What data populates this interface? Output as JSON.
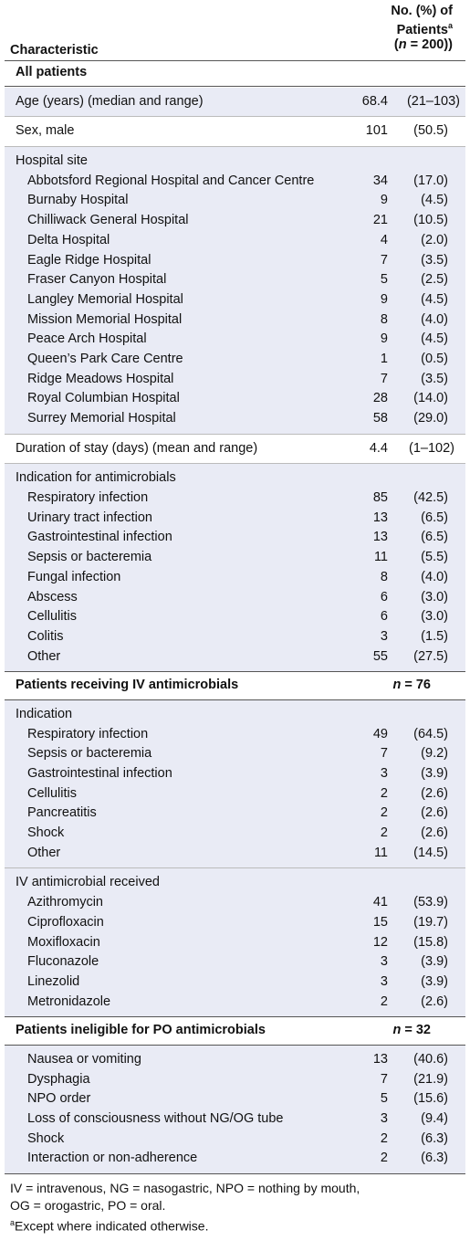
{
  "header": {
    "characteristic": "Characteristic",
    "col_line1": "No. (%) of",
    "col_line2": "Patients",
    "col_sup": "a",
    "col_line3_prefix": "(",
    "col_line3_n": "n",
    "col_line3_rest": " = 200)"
  },
  "all_patients": {
    "title": "All patients",
    "age": {
      "label": "Age (years) (median and range)",
      "n": "68.4",
      "p": "(21–103)"
    },
    "sex": {
      "label": "Sex, male",
      "n": "101",
      "p": "(50.5)"
    },
    "hospital_title": "Hospital site",
    "hospitals": [
      {
        "label": "Abbotsford Regional Hospital and Cancer Centre",
        "n": "34",
        "p": "(17.0)"
      },
      {
        "label": "Burnaby Hospital",
        "n": "9",
        "p": "(4.5)"
      },
      {
        "label": "Chilliwack General Hospital",
        "n": "21",
        "p": "(10.5)"
      },
      {
        "label": "Delta Hospital",
        "n": "4",
        "p": "(2.0)"
      },
      {
        "label": "Eagle Ridge Hospital",
        "n": "7",
        "p": "(3.5)"
      },
      {
        "label": "Fraser Canyon Hospital",
        "n": "5",
        "p": "(2.5)"
      },
      {
        "label": "Langley Memorial Hospital",
        "n": "9",
        "p": "(4.5)"
      },
      {
        "label": "Mission Memorial Hospital",
        "n": "8",
        "p": "(4.0)"
      },
      {
        "label": "Peace Arch Hospital",
        "n": "9",
        "p": "(4.5)"
      },
      {
        "label": "Queen’s Park Care Centre",
        "n": "1",
        "p": "(0.5)"
      },
      {
        "label": "Ridge Meadows Hospital",
        "n": "7",
        "p": "(3.5)"
      },
      {
        "label": "Royal Columbian Hospital",
        "n": "28",
        "p": "(14.0)"
      },
      {
        "label": "Surrey Memorial Hospital",
        "n": "58",
        "p": "(29.0)"
      }
    ],
    "duration": {
      "label": "Duration of stay (days) (mean and range)",
      "n": "4.4",
      "p": "(1–102)"
    },
    "indication_title": "Indication for antimicrobials",
    "indications": [
      {
        "label": "Respiratory infection",
        "n": "85",
        "p": "(42.5)"
      },
      {
        "label": "Urinary tract infection",
        "n": "13",
        "p": "(6.5)"
      },
      {
        "label": "Gastrointestinal infection",
        "n": "13",
        "p": "(6.5)"
      },
      {
        "label": "Sepsis or bacteremia",
        "n": "11",
        "p": "(5.5)"
      },
      {
        "label": "Fungal infection",
        "n": "8",
        "p": "(4.0)"
      },
      {
        "label": "Abscess",
        "n": "6",
        "p": "(3.0)"
      },
      {
        "label": "Cellulitis",
        "n": "6",
        "p": "(3.0)"
      },
      {
        "label": "Colitis",
        "n": "3",
        "p": "(1.5)"
      },
      {
        "label": "Other",
        "n": "55",
        "p": "(27.5)"
      }
    ]
  },
  "iv": {
    "title": "Patients receiving IV antimicrobials",
    "n_label": "n",
    "n_rest": " = 76",
    "indication_title": "Indication",
    "indications": [
      {
        "label": "Respiratory infection",
        "n": "49",
        "p": "(64.5)"
      },
      {
        "label": "Sepsis or bacteremia",
        "n": "7",
        "p": "(9.2)"
      },
      {
        "label": "Gastrointestinal infection",
        "n": "3",
        "p": "(3.9)"
      },
      {
        "label": "Cellulitis",
        "n": "2",
        "p": "(2.6)"
      },
      {
        "label": "Pancreatitis",
        "n": "2",
        "p": "(2.6)"
      },
      {
        "label": "Shock",
        "n": "2",
        "p": "(2.6)"
      },
      {
        "label": "Other",
        "n": "11",
        "p": "(14.5)"
      }
    ],
    "received_title": "IV antimicrobial received",
    "received": [
      {
        "label": "Azithromycin",
        "n": "41",
        "p": "(53.9)"
      },
      {
        "label": "Ciprofloxacin",
        "n": "15",
        "p": "(19.7)"
      },
      {
        "label": "Moxifloxacin",
        "n": "12",
        "p": "(15.8)"
      },
      {
        "label": "Fluconazole",
        "n": "3",
        "p": "(3.9)"
      },
      {
        "label": "Linezolid",
        "n": "3",
        "p": "(3.9)"
      },
      {
        "label": "Metronidazole",
        "n": "2",
        "p": "(2.6)"
      }
    ]
  },
  "po": {
    "title": "Patients ineligible for PO antimicrobials",
    "n_label": "n",
    "n_rest": " = 32",
    "reasons": [
      {
        "label": "Nausea or vomiting",
        "n": "13",
        "p": "(40.6)"
      },
      {
        "label": "Dysphagia",
        "n": "7",
        "p": "(21.9)"
      },
      {
        "label": "NPO order",
        "n": "5",
        "p": "(15.6)"
      },
      {
        "label": "Loss of consciousness without NG/OG tube",
        "n": "3",
        "p": "(9.4)"
      },
      {
        "label": "Shock",
        "n": "2",
        "p": "(6.3)"
      },
      {
        "label": "Interaction or non-adherence",
        "n": "2",
        "p": "(6.3)"
      }
    ]
  },
  "footnotes": {
    "line1": "IV = intravenous, NG = nasogastric, NPO = nothing by mouth,",
    "line2": "OG = orogastric, PO = oral.",
    "note_sup": "a",
    "note_text": "Except where indicated otherwise."
  }
}
